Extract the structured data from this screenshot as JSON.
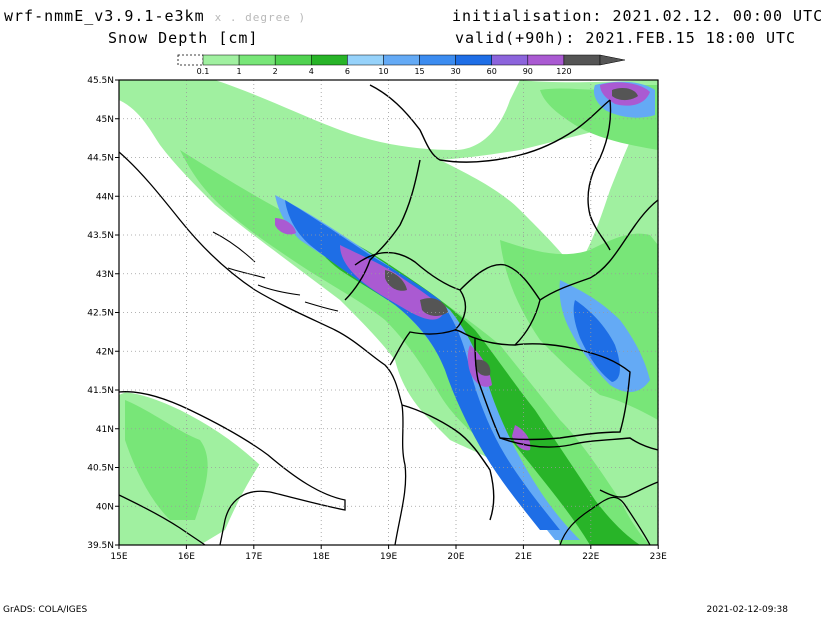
{
  "header": {
    "model": "wrf-nmmE_v3.9.1-e3km",
    "projection": "x . degree )",
    "field": "Snow Depth [cm]",
    "init_label": "initialisation:",
    "init_value": "2021.02.12.  00:00 UTC",
    "valid_label": "valid(+90h):",
    "valid_value": "2021.FEB.15  18:00 UTC"
  },
  "colorbar": {
    "labels": [
      "0.1",
      "1",
      "2",
      "4",
      "6",
      "10",
      "15",
      "30",
      "60",
      "90",
      "120"
    ],
    "colors": [
      "#a0f0a0",
      "#78e678",
      "#50d250",
      "#28b428",
      "#96d2fa",
      "#64aaf5",
      "#3c8cf0",
      "#1e6ee6",
      "#8c64dc",
      "#aa5ad2",
      "#555555"
    ]
  },
  "map": {
    "lat_labels": [
      "45.5N",
      "45N",
      "44.5N",
      "44N",
      "43.5N",
      "43N",
      "42.5N",
      "42N",
      "41.5N",
      "41N",
      "40.5N",
      "40N",
      "39.5N"
    ],
    "lon_labels": [
      "15E",
      "16E",
      "17E",
      "18E",
      "19E",
      "20E",
      "21E",
      "22E",
      "23E"
    ],
    "colors": {
      "light_green": "#a0f0a0",
      "green": "#78e678",
      "dark_green": "#28b428",
      "light_blue": "#64aaf5",
      "blue": "#1e6ee6",
      "purple": "#aa5ad2",
      "gray": "#555555"
    }
  },
  "footer": {
    "left": "GrADS: COLA/IGES",
    "right": "2021-02-12-09:38"
  }
}
